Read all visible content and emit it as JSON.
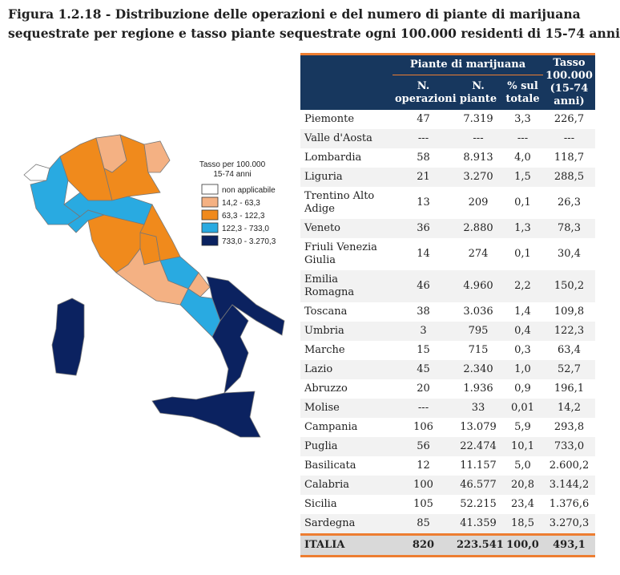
{
  "title": [
    "Figura 1.2.18 - Distribuzione delle operazioni e del numero di piante di marijuana",
    "sequestrate per regione e tasso piante sequestrate ogni 100.000 residenti di 15-74 anni"
  ],
  "legend": {
    "title": [
      "Tasso per 100.000",
      "15-74 anni"
    ],
    "items": [
      {
        "label": "non applicabile",
        "color": "#ffffff"
      },
      {
        "label": "14,2 - 63,3",
        "color": "#f4b183"
      },
      {
        "label": "63,3 - 122,3",
        "color": "#f08a1c"
      },
      {
        "label": "122,3 - 733,0",
        "color": "#29aae1"
      },
      {
        "label": "733,0 - 3.270,3",
        "color": "#0b2260"
      }
    ]
  },
  "table": {
    "header": {
      "group": "Piante di marijuana",
      "columns": [
        "N. operazioni",
        "N. piante",
        "% sul totale",
        "Tasso 100.000 (15-74 anni)"
      ]
    },
    "rows": [
      [
        "Piemonte",
        "47",
        "7.319",
        "3,3",
        "226,7"
      ],
      [
        "Valle d'Aosta",
        "---",
        "---",
        "---",
        "---"
      ],
      [
        "Lombardia",
        "58",
        "8.913",
        "4,0",
        "118,7"
      ],
      [
        "Liguria",
        "21",
        "3.270",
        "1,5",
        "288,5"
      ],
      [
        "Trentino Alto Adige",
        "13",
        "209",
        "0,1",
        "26,3"
      ],
      [
        "Veneto",
        "36",
        "2.880",
        "1,3",
        "78,3"
      ],
      [
        "Friuli Venezia Giulia",
        "14",
        "274",
        "0,1",
        "30,4"
      ],
      [
        "Emilia Romagna",
        "46",
        "4.960",
        "2,2",
        "150,2"
      ],
      [
        "Toscana",
        "38",
        "3.036",
        "1,4",
        "109,8"
      ],
      [
        "Umbria",
        "3",
        "795",
        "0,4",
        "122,3"
      ],
      [
        "Marche",
        "15",
        "715",
        "0,3",
        "63,4"
      ],
      [
        "Lazio",
        "45",
        "2.340",
        "1,0",
        "52,7"
      ],
      [
        "Abruzzo",
        "20",
        "1.936",
        "0,9",
        "196,1"
      ],
      [
        "Molise",
        "---",
        "33",
        "0,01",
        "14,2"
      ],
      [
        "Campania",
        "106",
        "13.079",
        "5,9",
        "293,8"
      ],
      [
        "Puglia",
        "56",
        "22.474",
        "10,1",
        "733,0"
      ],
      [
        "Basilicata",
        "12",
        "11.157",
        "5,0",
        "2.600,2"
      ],
      [
        "Calabria",
        "100",
        "46.577",
        "20,8",
        "3.144,2"
      ],
      [
        "Sicilia",
        "105",
        "52.215",
        "23,4",
        "1.376,6"
      ],
      [
        "Sardegna",
        "85",
        "41.359",
        "18,5",
        "3.270,3"
      ]
    ],
    "total": [
      "ITALIA",
      "820",
      "223.541",
      "100,0",
      "493,1"
    ]
  }
}
